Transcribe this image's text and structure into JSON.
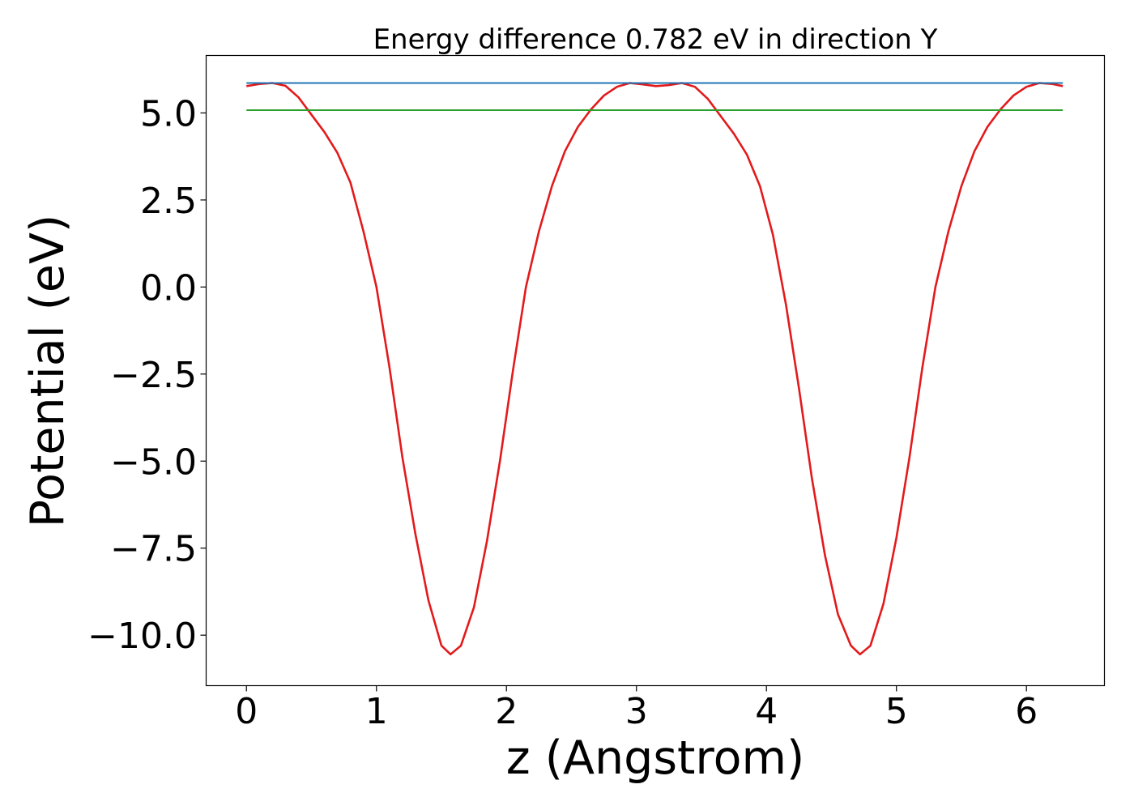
{
  "chart_data": {
    "type": "line",
    "title": "Energy difference 0.782 eV in direction Y",
    "xlabel": "z (Angstrom)",
    "ylabel": "Potential (eV)",
    "xlim": [
      -0.31,
      6.6
    ],
    "ylim": [
      -11.45,
      6.65
    ],
    "xticks": [
      0,
      1,
      2,
      3,
      4,
      5,
      6
    ],
    "xtick_labels": [
      "0",
      "1",
      "2",
      "3",
      "4",
      "5",
      "6"
    ],
    "yticks": [
      5.0,
      2.5,
      0.0,
      -2.5,
      -5.0,
      -7.5,
      -10.0
    ],
    "ytick_labels": [
      "5.0",
      "2.5",
      "0.0",
      "−2.5",
      "−5.0",
      "−7.5",
      "−10.0"
    ],
    "grid": false,
    "colors": {
      "potential": "#e31a1c",
      "upper": "#1f77b4",
      "lower": "#2ca02c"
    },
    "series": [
      {
        "values": [
          [
            0.0,
            5.77
          ],
          [
            0.1,
            5.83
          ],
          [
            0.2,
            5.86
          ],
          [
            0.3,
            5.78
          ],
          [
            0.4,
            5.45
          ],
          [
            0.5,
            4.95
          ],
          [
            0.6,
            4.45
          ],
          [
            0.7,
            3.85
          ],
          [
            0.8,
            3.0
          ],
          [
            0.9,
            1.6
          ],
          [
            1.0,
            0.0
          ],
          [
            1.1,
            -2.3
          ],
          [
            1.2,
            -4.9
          ],
          [
            1.3,
            -7.1
          ],
          [
            1.4,
            -9.0
          ],
          [
            1.5,
            -10.3
          ],
          [
            1.57,
            -10.55
          ],
          [
            1.65,
            -10.3
          ],
          [
            1.75,
            -9.2
          ],
          [
            1.85,
            -7.3
          ],
          [
            1.95,
            -5.0
          ],
          [
            2.05,
            -2.4
          ],
          [
            2.15,
            0.0
          ],
          [
            2.25,
            1.6
          ],
          [
            2.35,
            2.9
          ],
          [
            2.45,
            3.9
          ],
          [
            2.55,
            4.6
          ],
          [
            2.65,
            5.1
          ],
          [
            2.75,
            5.5
          ],
          [
            2.85,
            5.75
          ],
          [
            2.95,
            5.86
          ],
          [
            3.05,
            5.82
          ],
          [
            3.15,
            5.77
          ],
          [
            3.25,
            5.8
          ],
          [
            3.35,
            5.86
          ],
          [
            3.45,
            5.75
          ],
          [
            3.55,
            5.4
          ],
          [
            3.65,
            4.9
          ],
          [
            3.75,
            4.4
          ],
          [
            3.85,
            3.8
          ],
          [
            3.95,
            2.9
          ],
          [
            4.05,
            1.5
          ],
          [
            4.15,
            -0.5
          ],
          [
            4.25,
            -2.9
          ],
          [
            4.35,
            -5.5
          ],
          [
            4.45,
            -7.7
          ],
          [
            4.55,
            -9.4
          ],
          [
            4.65,
            -10.3
          ],
          [
            4.72,
            -10.55
          ],
          [
            4.8,
            -10.3
          ],
          [
            4.9,
            -9.1
          ],
          [
            5.0,
            -7.2
          ],
          [
            5.1,
            -4.9
          ],
          [
            5.2,
            -2.3
          ],
          [
            5.3,
            0.0
          ],
          [
            5.4,
            1.6
          ],
          [
            5.5,
            2.9
          ],
          [
            5.6,
            3.9
          ],
          [
            5.7,
            4.6
          ],
          [
            5.8,
            5.1
          ],
          [
            5.9,
            5.5
          ],
          [
            6.0,
            5.75
          ],
          [
            6.1,
            5.86
          ],
          [
            6.2,
            5.83
          ],
          [
            6.28,
            5.77
          ]
        ]
      },
      {
        "values": [
          [
            0.0,
            5.86
          ],
          [
            6.28,
            5.86
          ]
        ]
      },
      {
        "values": [
          [
            0.0,
            5.08
          ],
          [
            6.28,
            5.08
          ]
        ]
      }
    ]
  }
}
